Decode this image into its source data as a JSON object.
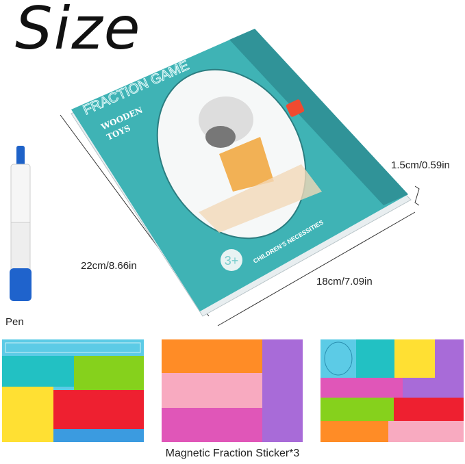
{
  "title": "Size",
  "book": {
    "cover_title": "FRACTION GAME",
    "brand_line1": "WOODEN",
    "brand_line2": "TOYS",
    "age": "3+",
    "footer": "CHILDREN'S NECESSITIES"
  },
  "dimensions": {
    "height": "22cm/8.66in",
    "width": "18cm/7.09in",
    "thickness": "1.5cm/0.59in"
  },
  "pen_label": "Pen",
  "caption": "Magnetic Fraction Sticker*3",
  "colors": {
    "cover": "#3fb3b5",
    "flap": "#2f8f95",
    "cyan": "#5ccbe6",
    "teal": "#22c1c3",
    "green": "#86d11c",
    "yellow": "#ffe033",
    "red": "#ee2030",
    "orange": "#ff8c26",
    "pink": "#f8aac0",
    "magenta": "#e056b8",
    "purple": "#a86bd8",
    "blue": "#3b9be0"
  }
}
